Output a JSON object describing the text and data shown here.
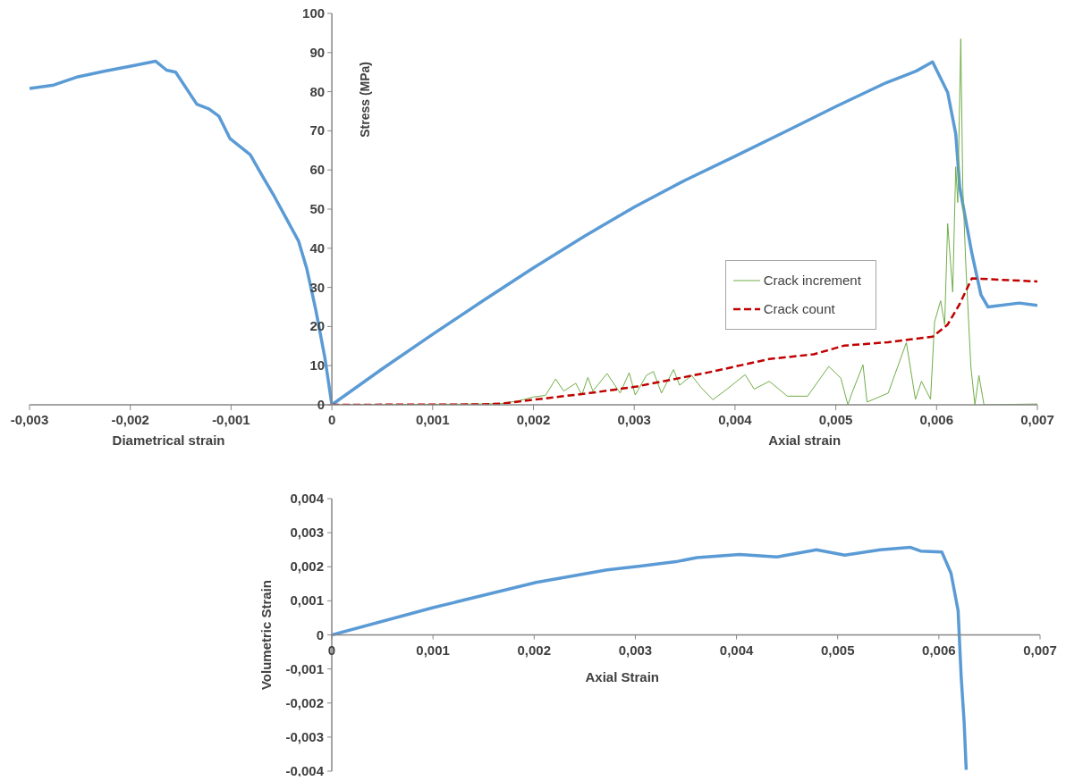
{
  "chart_data": [
    {
      "type": "line",
      "ylabel": "Stress (MPa)",
      "xlabel": "Axial strain",
      "annotations": [
        "Diametrical strain"
      ],
      "xlim": [
        -0.003,
        0.007
      ],
      "ylim": [
        0,
        100
      ],
      "xticks": [
        {
          "value": -0.003,
          "label": "-0,003"
        },
        {
          "value": -0.002,
          "label": "-0,002"
        },
        {
          "value": -0.001,
          "label": "-0,001"
        },
        0,
        {
          "value": 0.001,
          "label": "0,001"
        },
        {
          "value": 0.002,
          "label": "0,002"
        },
        {
          "value": 0.003,
          "label": "0,003"
        },
        {
          "value": 0.004,
          "label": "0,004"
        },
        {
          "value": 0.005,
          "label": "0,005"
        },
        {
          "value": 0.006,
          "label": "0,006"
        },
        {
          "value": 0.007,
          "label": "0,007"
        }
      ],
      "yticks": [
        0,
        10,
        20,
        30,
        40,
        50,
        60,
        70,
        80,
        90,
        100
      ],
      "legend": "right",
      "grid": false,
      "series": [
        {
          "color": "#5b9bd5",
          "x": [
            -0.003,
            -0.00276,
            -0.00252,
            -0.00226,
            -0.00196,
            -0.00175,
            -0.00164,
            -0.00155,
            -0.00134,
            -0.00122,
            -0.00112,
            -0.00101,
            -0.00081,
            -0.00069,
            -0.00057,
            -0.00045,
            -0.00033,
            -0.00025,
            -0.00016,
            -7e-05,
            0
          ],
          "values": [
            80.8,
            81.7,
            83.8,
            85.2,
            86.7,
            87.8,
            85.5,
            85,
            76.8,
            75.6,
            73.7,
            68,
            63.9,
            58.5,
            53.2,
            47.5,
            41.8,
            34.9,
            24.3,
            12.1,
            0
          ]
        },
        {
          "color": "#5b9bd5",
          "x": [
            0,
            0.0005,
            0.001,
            0.0015,
            0.002,
            0.0025,
            0.003,
            0.0035,
            0.004,
            0.0045,
            0.005,
            0.0055,
            0.0058,
            0.00596,
            0.00611,
            0.00619,
            0.00623,
            0.00635,
            0.00644,
            0.00651,
            0.00682,
            0.007
          ],
          "values": [
            0,
            9.2,
            18,
            26.6,
            35,
            43,
            50.5,
            57.3,
            63.5,
            69.8,
            76.2,
            82.3,
            85.3,
            87.6,
            79.8,
            69.2,
            55.5,
            38.7,
            28.1,
            25,
            26,
            25.4
          ]
        },
        {
          "name": "Crack increment",
          "color": "#70ad47",
          "x": [
            0,
            0.0015,
            0.00168,
            0.00185,
            0.002,
            0.00212,
            0.00222,
            0.0023,
            0.00242,
            0.00248,
            0.00254,
            0.00259,
            0.00273,
            0.00286,
            0.00295,
            0.00301,
            0.00312,
            0.00319,
            0.00327,
            0.00339,
            0.00345,
            0.00357,
            0.00366,
            0.00378,
            0.00392,
            0.0041,
            0.00419,
            0.00434,
            0.00452,
            0.00472,
            0.00493,
            0.00505,
            0.00512,
            0.00516,
            0.00527,
            0.00531,
            0.00552,
            0.0057,
            0.00579,
            0.00585,
            0.00594,
            0.00598,
            0.00604,
            0.00608,
            0.00611,
            0.00616,
            0.00619,
            0.00621,
            0.00624,
            0.00626,
            0.00629,
            0.00634,
            0.00638,
            0.00642,
            0.00647,
            0.007
          ],
          "values": [
            0,
            0.2,
            0.3,
            1,
            2,
            2.4,
            6.6,
            3.5,
            5.5,
            2.5,
            7,
            3.5,
            8,
            3,
            8.2,
            2.5,
            7.5,
            8.5,
            3,
            9,
            5,
            7.5,
            4.5,
            1.3,
            4,
            7.7,
            4,
            6,
            2.2,
            2.2,
            9.8,
            6.8,
            0,
            3,
            10.2,
            0.7,
            3,
            15.9,
            1.4,
            6,
            1.4,
            21.2,
            26.6,
            20.5,
            46.3,
            28.8,
            60.8,
            51.7,
            93.5,
            55.5,
            35.7,
            9.8,
            0,
            7.5,
            0,
            0.2
          ]
        },
        {
          "name": "Crack count",
          "color": "#c00000",
          "line_style": "dashed",
          "x": [
            0,
            0.0015,
            0.00168,
            0.00256,
            0.00301,
            0.00374,
            0.00434,
            0.00478,
            0.00508,
            0.00552,
            0.00596,
            0.00611,
            0.00623,
            0.00635,
            0.007
          ],
          "values": [
            0,
            0.1,
            0.3,
            3,
            4.6,
            8.3,
            11.7,
            12.9,
            15.1,
            16,
            17.4,
            20.5,
            25.8,
            32.3,
            31.5
          ]
        }
      ]
    },
    {
      "type": "line",
      "xlabel": "Axial Strain",
      "ylabel": "Volumetric Strain",
      "xlim": [
        0,
        0.007
      ],
      "ylim": [
        -0.004,
        0.004
      ],
      "xticks": [
        0,
        {
          "value": 0.001,
          "label": "0,001"
        },
        {
          "value": 0.002,
          "label": "0,002"
        },
        {
          "value": 0.003,
          "label": "0,003"
        },
        {
          "value": 0.004,
          "label": "0,004"
        },
        {
          "value": 0.005,
          "label": "0,005"
        },
        {
          "value": 0.006,
          "label": "0,006"
        },
        {
          "value": 0.007,
          "label": "0,007"
        }
      ],
      "yticks": [
        {
          "value": -0.004,
          "label": "-0,004"
        },
        {
          "value": -0.003,
          "label": "-0,003"
        },
        {
          "value": -0.002,
          "label": "-0,002"
        },
        {
          "value": -0.001,
          "label": "-0,001"
        },
        0,
        {
          "value": 0.001,
          "label": "0,001"
        },
        {
          "value": 0.002,
          "label": "0,002"
        },
        {
          "value": 0.003,
          "label": "0,003"
        },
        {
          "value": 0.004,
          "label": "0,004"
        }
      ],
      "grid": false,
      "series": [
        {
          "color": "#5b9bd5",
          "x": [
            0,
            0.001,
            0.00202,
            0.00272,
            0.00305,
            0.00342,
            0.00361,
            0.00403,
            0.0044,
            0.00479,
            0.00507,
            0.00542,
            0.00572,
            0.00582,
            0.00603,
            0.00612,
            0.00619,
            0.00622,
            0.00625,
            0.00627
          ],
          "values": [
            0,
            0.0008,
            0.00154,
            0.00191,
            0.00202,
            0.00216,
            0.00227,
            0.00236,
            0.00229,
            0.0025,
            0.00234,
            0.0025,
            0.00257,
            0.00246,
            0.00243,
            0.00181,
            0.00071,
            -0.00121,
            -0.00258,
            -0.00396
          ]
        }
      ]
    }
  ]
}
